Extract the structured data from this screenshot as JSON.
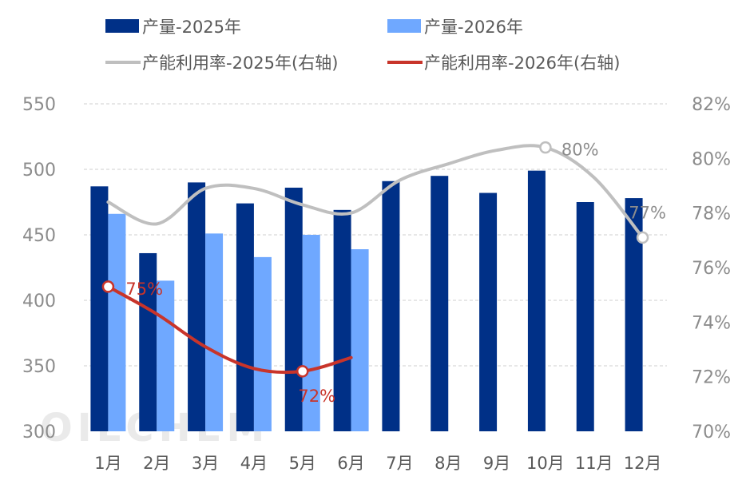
{
  "chart_data": {
    "type": "bar",
    "categories": [
      "1月",
      "2月",
      "3月",
      "4月",
      "5月",
      "6月",
      "7月",
      "8月",
      "9月",
      "10月",
      "11月",
      "12月"
    ],
    "series": [
      {
        "name": "产量-2025年",
        "type": "bar",
        "axis": "left",
        "color": "#003087",
        "values": [
          487,
          436,
          490,
          474,
          486,
          469,
          491,
          495,
          482,
          499,
          475,
          478
        ]
      },
      {
        "name": "产量-2026年",
        "type": "bar",
        "axis": "left",
        "color": "#6fa8ff",
        "values": [
          466,
          415,
          451,
          433,
          450,
          439,
          null,
          null,
          null,
          null,
          null,
          null
        ]
      },
      {
        "name": "产能利用率-2025年(右轴)",
        "type": "line",
        "axis": "right",
        "color": "#bfbfbf",
        "values": [
          78.4,
          77.6,
          78.9,
          78.9,
          78.3,
          78.0,
          79.2,
          79.8,
          80.3,
          80.4,
          79.3,
          77.1
        ]
      },
      {
        "name": "产能利用率-2026年(右轴)",
        "type": "line",
        "axis": "right",
        "color": "#c8342a",
        "values": [
          75.3,
          74.3,
          73.1,
          72.3,
          72.2,
          72.7,
          null,
          null,
          null,
          null,
          null,
          null
        ]
      }
    ],
    "left_axis": {
      "min": 300,
      "max": 550,
      "ticks": [
        550,
        500,
        450,
        400,
        350,
        300
      ]
    },
    "right_axis": {
      "min": 70,
      "max": 82,
      "ticks": [
        "82%",
        "80%",
        "78%",
        "76%",
        "74%",
        "72%",
        "70%"
      ]
    },
    "data_labels": [
      {
        "series": 3,
        "index": 0,
        "text": "75%"
      },
      {
        "series": 3,
        "index": 4,
        "text": "72%"
      },
      {
        "series": 2,
        "index": 9,
        "text": "80%"
      },
      {
        "series": 2,
        "index": 11,
        "text": "77%"
      }
    ],
    "grid": true,
    "legend_position": "top",
    "watermark": "OILCHEM"
  }
}
